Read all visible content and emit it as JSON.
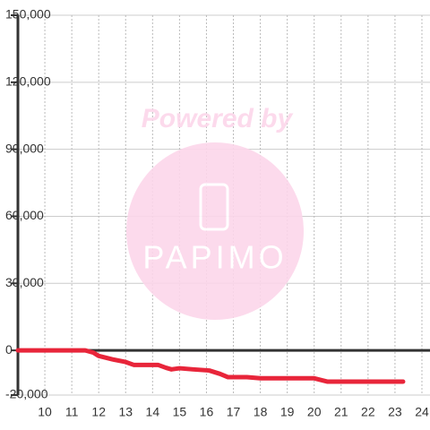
{
  "chart_data": {
    "type": "line",
    "x": [
      9,
      11.5,
      11.8,
      12.0,
      12.5,
      13.0,
      13.3,
      14.2,
      14.5,
      14.7,
      15.0,
      15.5,
      16.1,
      16.5,
      16.8,
      17.5,
      18.0,
      20.0,
      20.5,
      23.3
    ],
    "values": [
      0,
      0,
      -1000,
      -2500,
      -4000,
      -5200,
      -6500,
      -6500,
      -7800,
      -8500,
      -8000,
      -8500,
      -9000,
      -10500,
      -12000,
      -12000,
      -12500,
      -12500,
      -14000,
      -14000
    ],
    "color": "#e8253a",
    "xlim": [
      9,
      24.3
    ],
    "xticks": [
      10,
      11,
      12,
      13,
      14,
      15,
      16,
      17,
      18,
      19,
      20,
      21,
      22,
      23,
      24
    ],
    "ylim": [
      -20000,
      150000
    ],
    "yticks": [
      {
        "value": -20000,
        "label": "-20,000"
      },
      0,
      {
        "value": 30000,
        "label": "30,000"
      },
      {
        "value": 60000,
        "label": "60,000"
      },
      {
        "value": 90000,
        "label": "90,000"
      },
      {
        "value": 120000,
        "label": "120,000"
      },
      {
        "value": 150000,
        "label": "150,000"
      }
    ],
    "grid": true,
    "zero_line": true,
    "watermark": {
      "line1": "Powered by",
      "line2": "PAPIMO"
    }
  }
}
